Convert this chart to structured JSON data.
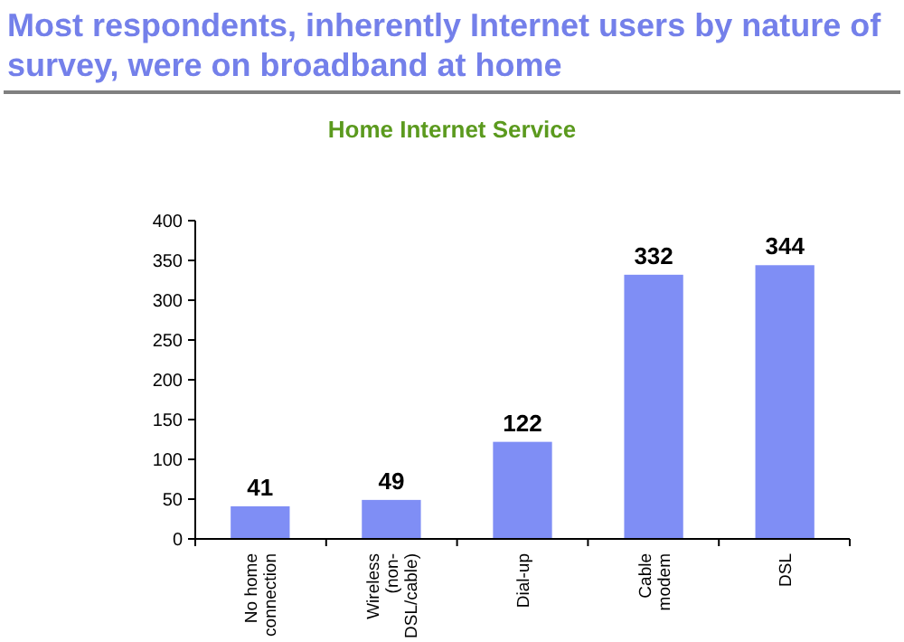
{
  "chart_data": {
    "type": "bar",
    "title": "Most respondents, inherently Internet users by nature of survey, were on broadband at home",
    "subtitle": "Home Internet Service",
    "categories": [
      "No home connection",
      "Wireless (non-DSL/cable)",
      "Dial-up",
      "Cable modem",
      "DSL"
    ],
    "values": [
      41,
      49,
      122,
      332,
      344
    ],
    "color": "#7f8ef5",
    "ylim": [
      0,
      400
    ],
    "yticks": [
      0,
      50,
      100,
      150,
      200,
      250,
      300,
      350,
      400
    ],
    "data_labels": true,
    "grid": false
  }
}
